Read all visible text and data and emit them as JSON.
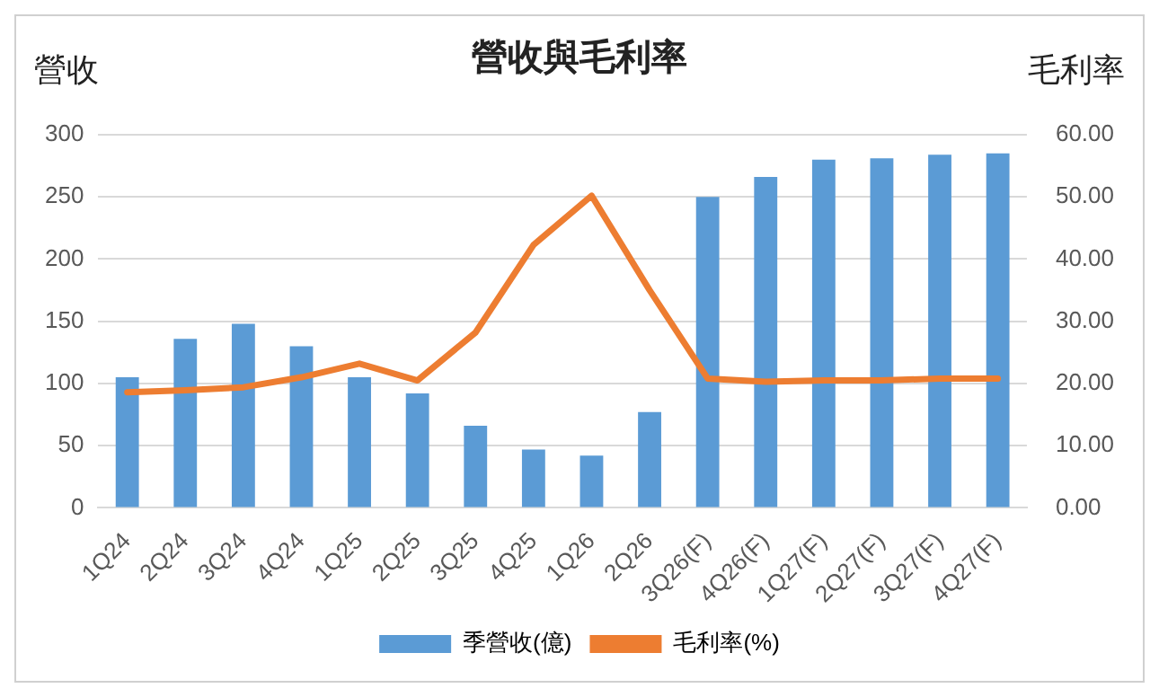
{
  "chart_data": {
    "type": "bar",
    "title": "營收與毛利率",
    "ylabel": "營收",
    "y2label": "毛利率",
    "categories": [
      "1Q24",
      "2Q24",
      "3Q24",
      "4Q24",
      "1Q25",
      "2Q25",
      "3Q25",
      "4Q25",
      "1Q26",
      "2Q26",
      "3Q26(F)",
      "4Q26(F)",
      "1Q27(F)",
      "2Q27(F)",
      "3Q27(F)",
      "4Q27(F)"
    ],
    "series": [
      {
        "name": "季營收(億)",
        "color": "#5b9bd5",
        "values": [
          105,
          136,
          148,
          130,
          105,
          92,
          66,
          47,
          42,
          77,
          250,
          266,
          280,
          281,
          284,
          285
        ]
      },
      {
        "name": "毛利率(%)",
        "type": "line",
        "axis": "y2",
        "color": "#ed7d31",
        "values": [
          18.6,
          18.9,
          19.4,
          21,
          23.2,
          20.5,
          28.2,
          42.3,
          50.2,
          35,
          20.8,
          20.3,
          20.5,
          20.5,
          20.8,
          20.8
        ]
      }
    ],
    "ylim": [
      0,
      300
    ],
    "yticks": [
      0,
      50,
      100,
      150,
      200,
      250,
      300
    ],
    "y2lim": [
      0,
      60
    ],
    "y2ticks": [
      {
        "value": 0,
        "label": "0.00"
      },
      {
        "value": 10,
        "label": "10.00"
      },
      {
        "value": 20,
        "label": "20.00"
      },
      {
        "value": 30,
        "label": "30.00"
      },
      {
        "value": 40,
        "label": "40.00"
      },
      {
        "value": 50,
        "label": "50.00"
      },
      {
        "value": 60,
        "label": "60.00"
      }
    ],
    "grid": "y",
    "legend": "bottom",
    "marker": "none"
  }
}
